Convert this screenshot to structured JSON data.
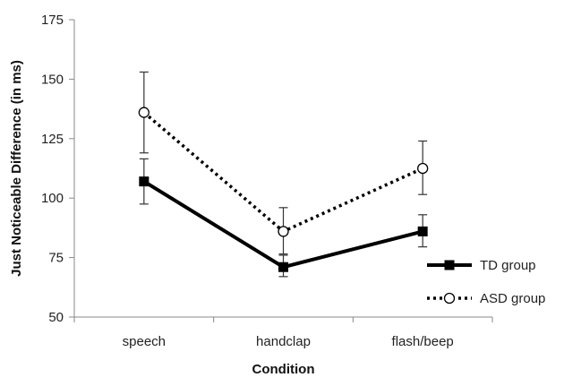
{
  "chart_data": {
    "type": "line",
    "title": "",
    "xlabel": "Condition",
    "ylabel": "Just Noticeable Difference (in ms)",
    "categories": [
      "speech",
      "handclap",
      "flash/beep"
    ],
    "ylim": [
      50,
      175
    ],
    "yticks": [
      50,
      75,
      100,
      125,
      150,
      175
    ],
    "grid": false,
    "legend_position": "right",
    "series": [
      {
        "name": "TD group",
        "style": "solid",
        "marker": "filled-square",
        "color": "#000000",
        "values": [
          107,
          71,
          86
        ],
        "err_low": [
          97.5,
          67,
          79.5
        ],
        "err_high": [
          116.5,
          76,
          93
        ]
      },
      {
        "name": "ASD group",
        "style": "dotted",
        "marker": "open-circle",
        "color": "#000000",
        "values": [
          136,
          86,
          112.5
        ],
        "err_low": [
          119,
          76.5,
          101.5
        ],
        "err_high": [
          153,
          96,
          124
        ]
      }
    ]
  }
}
